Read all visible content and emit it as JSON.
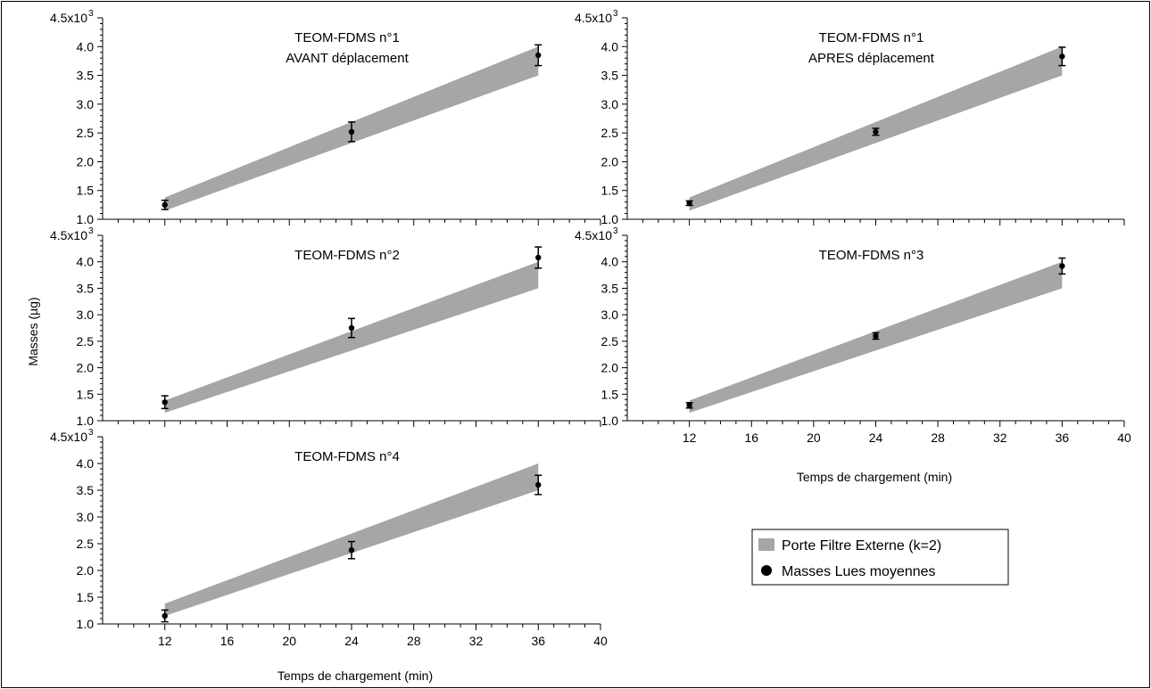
{
  "chart_data": {
    "type": "scatter",
    "ylabel": "Masses (µg)",
    "xlabel": "Temps de chargement (min)",
    "xlim": [
      8,
      40
    ],
    "xticks": [
      12,
      16,
      20,
      24,
      28,
      32,
      36,
      40
    ],
    "xtick_labels": [
      "12",
      "16",
      "20",
      "24",
      "28",
      "32",
      "36",
      "40"
    ],
    "ylim": [
      1000,
      4500
    ],
    "yticks": [
      1000,
      1500,
      2000,
      2500,
      3000,
      3500,
      4000
    ],
    "ytick_labels": [
      "1.0",
      "1.5",
      "2.0",
      "2.5",
      "3.0",
      "3.5",
      "4.0"
    ],
    "ytop_mantissa": "4.5x10",
    "ytop_exponent": "3",
    "band": {
      "x": [
        12,
        36
      ],
      "lower": [
        1150,
        3500
      ],
      "upper": [
        1380,
        4000
      ]
    },
    "legend": {
      "placement": "lower-right",
      "items": [
        "Porte Filtre Externe (k=2)",
        "Masses Lues moyennes"
      ]
    },
    "colors": {
      "band": "#a6a6a6",
      "points": "#000000"
    },
    "panels": [
      {
        "title_lines": [
          "TEOM-FDMS n°1",
          "AVANT déplacement"
        ],
        "show_xaxis_labels": false,
        "points": [
          {
            "x": 12,
            "y": 1250,
            "err": 80
          },
          {
            "x": 24,
            "y": 2520,
            "err": 170
          },
          {
            "x": 36,
            "y": 3850,
            "err": 180
          }
        ]
      },
      {
        "title_lines": [
          "TEOM-FDMS n°1",
          "APRES déplacement"
        ],
        "show_xaxis_labels": false,
        "points": [
          {
            "x": 12,
            "y": 1280,
            "err": 40
          },
          {
            "x": 24,
            "y": 2520,
            "err": 60
          },
          {
            "x": 36,
            "y": 3830,
            "err": 160
          }
        ]
      },
      {
        "title_lines": [
          "TEOM-FDMS n°2"
        ],
        "show_xaxis_labels": false,
        "points": [
          {
            "x": 12,
            "y": 1350,
            "err": 120
          },
          {
            "x": 24,
            "y": 2750,
            "err": 180
          },
          {
            "x": 36,
            "y": 4080,
            "err": 200
          }
        ]
      },
      {
        "title_lines": [
          "TEOM-FDMS n°3"
        ],
        "show_xaxis_labels": true,
        "points": [
          {
            "x": 12,
            "y": 1290,
            "err": 50
          },
          {
            "x": 24,
            "y": 2600,
            "err": 60
          },
          {
            "x": 36,
            "y": 3920,
            "err": 150
          }
        ]
      },
      {
        "title_lines": [
          "TEOM-FDMS n°4"
        ],
        "show_xaxis_labels": true,
        "points": [
          {
            "x": 12,
            "y": 1150,
            "err": 110
          },
          {
            "x": 24,
            "y": 2380,
            "err": 160
          },
          {
            "x": 36,
            "y": 3600,
            "err": 180
          }
        ]
      }
    ]
  }
}
